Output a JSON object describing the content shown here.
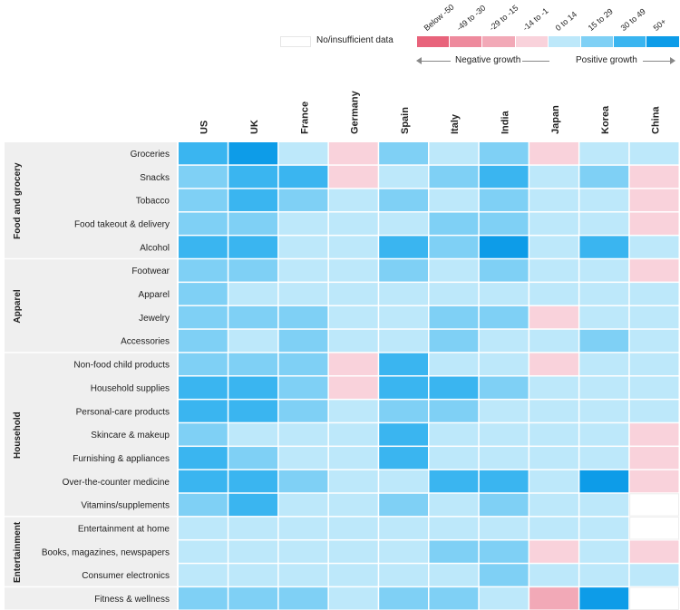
{
  "legend": {
    "no_data_label": "No/insufficient data",
    "negative_label": "Negative growth",
    "positive_label": "Positive growth",
    "bins": [
      {
        "label": "Below -50",
        "color": "#e8637b"
      },
      {
        "label": "-49 to -30",
        "color": "#ee8a9d"
      },
      {
        "label": "-29 to -15",
        "color": "#f2a9b7"
      },
      {
        "label": "-14 to -1",
        "color": "#f9d2db"
      },
      {
        "label": "0 to 14",
        "color": "#bde8fa"
      },
      {
        "label": "15 to 29",
        "color": "#7fd0f5"
      },
      {
        "label": "30 to 49",
        "color": "#3ab5f0"
      },
      {
        "label": "50+",
        "color": "#0d9ce8"
      }
    ],
    "no_data_color": "#ffffff"
  },
  "chart_data": {
    "type": "heatmap",
    "columns": [
      "US",
      "UK",
      "France",
      "Germany",
      "Spain",
      "Italy",
      "India",
      "Japan",
      "Korea",
      "China"
    ],
    "groups": [
      {
        "name": "Food and grocery",
        "rows": [
          "Groceries",
          "Snacks",
          "Tobacco",
          "Food takeout & delivery",
          "Alcohol"
        ]
      },
      {
        "name": "Apparel",
        "rows": [
          "Footwear",
          "Apparel",
          "Jewelry",
          "Accessories"
        ]
      },
      {
        "name": "Household",
        "rows": [
          "Non-food child products",
          "Household supplies",
          "Personal-care products",
          "Skincare & makeup",
          "Furnishing & appliances",
          "Over-the-counter medicine",
          "Vitamins/supplements"
        ]
      },
      {
        "name": "Entertainment",
        "rows": [
          "Entertainment at home",
          "Books, magazines, newspapers",
          "Consumer electronics"
        ]
      },
      {
        "name": "",
        "rows": [
          "Fitness & wellness"
        ]
      }
    ],
    "bin_index_note": "cell values are legend bin indices: 0=Below -50 ... 7=50+, null=No/insufficient data",
    "cells": [
      [
        6,
        7,
        4,
        3,
        5,
        4,
        5,
        3,
        4,
        4
      ],
      [
        5,
        6,
        6,
        3,
        4,
        5,
        6,
        4,
        5,
        3
      ],
      [
        5,
        6,
        5,
        4,
        5,
        4,
        5,
        4,
        4,
        3
      ],
      [
        5,
        5,
        4,
        4,
        4,
        5,
        5,
        4,
        4,
        3
      ],
      [
        6,
        6,
        4,
        4,
        6,
        5,
        7,
        4,
        6,
        4
      ],
      [
        5,
        5,
        4,
        4,
        5,
        4,
        5,
        4,
        4,
        3
      ],
      [
        5,
        4,
        4,
        4,
        4,
        4,
        4,
        4,
        4,
        4
      ],
      [
        5,
        5,
        5,
        4,
        4,
        5,
        5,
        3,
        4,
        4
      ],
      [
        5,
        4,
        5,
        4,
        4,
        5,
        4,
        4,
        5,
        4
      ],
      [
        5,
        5,
        5,
        3,
        6,
        4,
        4,
        3,
        4,
        4
      ],
      [
        6,
        6,
        5,
        3,
        6,
        6,
        5,
        4,
        4,
        4
      ],
      [
        6,
        6,
        5,
        4,
        5,
        5,
        4,
        4,
        4,
        4
      ],
      [
        5,
        4,
        4,
        4,
        6,
        4,
        4,
        4,
        4,
        3
      ],
      [
        6,
        5,
        4,
        4,
        6,
        4,
        4,
        4,
        4,
        3
      ],
      [
        6,
        6,
        5,
        4,
        4,
        6,
        6,
        4,
        7,
        3
      ],
      [
        5,
        6,
        4,
        4,
        5,
        4,
        5,
        4,
        4,
        null
      ],
      [
        4,
        4,
        4,
        4,
        4,
        4,
        4,
        4,
        4,
        null
      ],
      [
        4,
        4,
        4,
        4,
        4,
        5,
        5,
        3,
        4,
        3
      ],
      [
        4,
        4,
        4,
        4,
        4,
        4,
        5,
        4,
        4,
        4
      ],
      [
        5,
        5,
        5,
        4,
        5,
        5,
        4,
        2,
        7,
        null
      ]
    ]
  }
}
